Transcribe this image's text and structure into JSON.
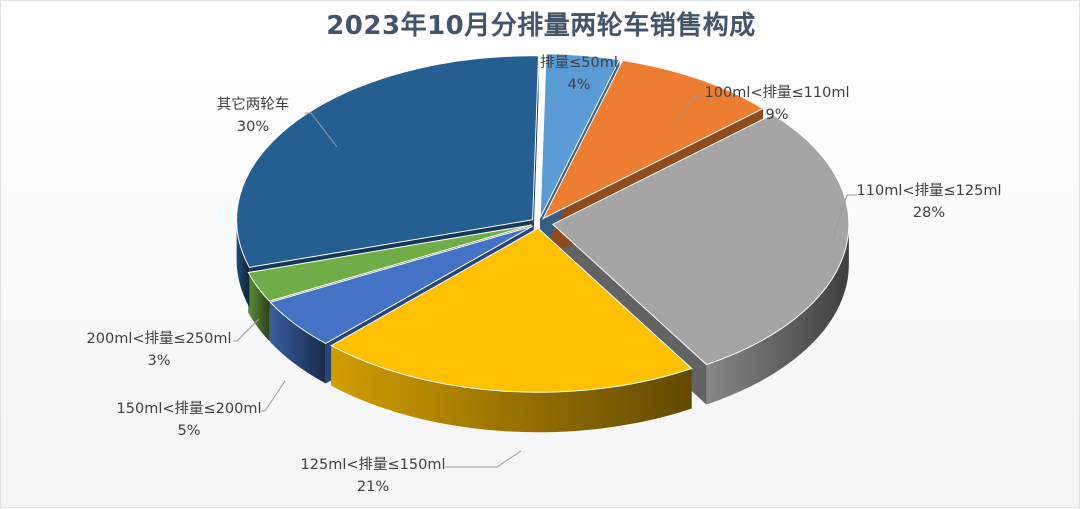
{
  "chart_data": {
    "type": "pie",
    "title": "2023年10月分排量两轮车销售构成",
    "slices": [
      {
        "label": "排量≤50ml",
        "value": 4,
        "value_label": "4%",
        "color": "#5b9bd5"
      },
      {
        "label": "100ml<排量≤110ml",
        "value": 9,
        "value_label": "9%",
        "color": "#ed7d31"
      },
      {
        "label": "110ml<排量≤125ml",
        "value": 28,
        "value_label": "28%",
        "color": "#a5a5a5"
      },
      {
        "label": "125ml<排量≤150ml",
        "value": 21,
        "value_label": "21%",
        "color": "#ffc000"
      },
      {
        "label": "150ml<排量≤200ml",
        "value": 5,
        "value_label": "5%",
        "color": "#4472c4"
      },
      {
        "label": "200ml<排量≤250ml",
        "value": 3,
        "value_label": "3%",
        "color": "#70ad47"
      },
      {
        "label": "其它两轮车",
        "value": 30,
        "value_label": "30%",
        "color": "#255e91"
      }
    ],
    "legend": "none",
    "style": "3d-exploded"
  }
}
